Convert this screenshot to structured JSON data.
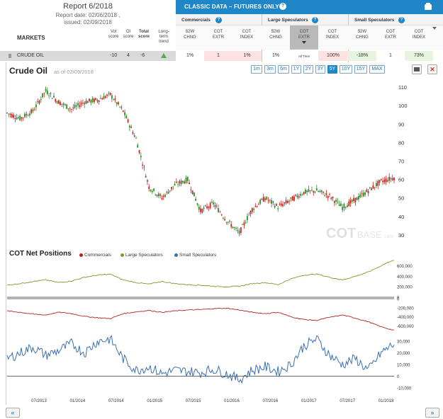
{
  "report": {
    "title": "Report 6/2018",
    "date": "Report date: 02/06/2018 ,",
    "issued": "issued: 02/09/2018",
    "markets_label": "MARKETS",
    "cols": [
      "Vol score",
      "OI score",
      "Total score",
      "Long-term trend"
    ]
  },
  "classic": {
    "title": "CLASSIC DATA – FUTURES ONLY",
    "groups": [
      "Commercials",
      "Large Speculators",
      "Small Speculators"
    ],
    "subcols": [
      [
        "52W",
        "CHNG"
      ],
      [
        "COT",
        "EXTR"
      ],
      [
        "COT",
        "INDEX"
      ],
      [
        "52W",
        "CHNG"
      ],
      [
        "COT",
        "EXTR"
      ],
      [
        "COT",
        "INDEX"
      ],
      [
        "52W",
        "CHNG"
      ],
      [
        "COT",
        "EXTR"
      ],
      [
        "COT",
        "INDEX"
      ]
    ]
  },
  "row": {
    "ticker": "CRUDE OIL",
    "vol": "-10",
    "oi": "4",
    "total": "-6",
    "cells": [
      "1%",
      "1",
      "1%",
      "1%",
      "All Time",
      "100%",
      "-18%",
      "1",
      "73%"
    ]
  },
  "price_chart": {
    "title": "Crude Oil",
    "asof": "as of 02/09/2018",
    "ranges": [
      "1m",
      "3m",
      "6m",
      "1Y",
      "2Y",
      "3Y",
      "5Y",
      "10Y",
      "15Y",
      "MAX"
    ],
    "active_range": "5Y",
    "watermark_cot": "COT",
    "watermark_base": "BASE",
    "watermark_com": ".com"
  },
  "cot_chart": {
    "title": "COT Net Positions",
    "legend": [
      "Commercials",
      "Large Speculators",
      "Small Speculators"
    ]
  },
  "colors": {
    "accent": "#1f86c7",
    "commercials": "#b22222",
    "large_spec": "#7a9a2e",
    "small_spec": "#3b6fb0",
    "candle_up": "#2e8b2e",
    "candle_down": "#cc2222"
  },
  "nav": {
    "prev": "«",
    "next": "»"
  },
  "chart_data": [
    {
      "type": "line",
      "title": "Crude Oil",
      "xlabel": "",
      "ylabel": "",
      "ylim": [
        25,
        115
      ],
      "yticks": [
        "110",
        "100",
        "90",
        "80",
        "70",
        "60",
        "50",
        "40",
        "30"
      ],
      "xticks": [
        "07/2013",
        "01/2014",
        "07/2014",
        "01/2015",
        "07/2015",
        "01/2016",
        "07/2016",
        "01/2017",
        "07/2017",
        "01/2018"
      ],
      "x": [
        "02/2013",
        "04/2013",
        "06/2013",
        "08/2013",
        "10/2013",
        "12/2013",
        "02/2014",
        "04/2014",
        "06/2014",
        "08/2014",
        "10/2014",
        "12/2014",
        "02/2015",
        "04/2015",
        "06/2015",
        "08/2015",
        "10/2015",
        "12/2015",
        "02/2016",
        "04/2016",
        "06/2016",
        "08/2016",
        "10/2016",
        "12/2016",
        "02/2017",
        "04/2017",
        "06/2017",
        "08/2017",
        "10/2017",
        "12/2017",
        "02/2018"
      ],
      "series": [
        {
          "values": [
            96,
            93,
            97,
            108,
            102,
            98,
            102,
            103,
            106,
            97,
            82,
            56,
            50,
            57,
            60,
            43,
            47,
            38,
            31,
            44,
            50,
            45,
            49,
            53,
            54,
            51,
            45,
            49,
            54,
            59,
            61
          ]
        }
      ]
    },
    {
      "type": "line",
      "title": "COT Net Positions",
      "series": [
        {
          "name": "Large Speculators",
          "yticks": [
            "600,000",
            "400,000",
            "200,000",
            "0"
          ],
          "ylim": [
            0,
            700000
          ],
          "values": [
            230000,
            260000,
            300000,
            330000,
            280000,
            310000,
            380000,
            420000,
            440000,
            330000,
            280000,
            250000,
            300000,
            260000,
            240000,
            230000,
            210000,
            200000,
            210000,
            260000,
            280000,
            240000,
            350000,
            420000,
            440000,
            380000,
            330000,
            400000,
            480000,
            600000,
            720000
          ]
        },
        {
          "name": "Commercials",
          "yticks": [
            "0",
            "-200,000",
            "-400,000",
            "-600,000"
          ],
          "ylim": [
            -750000,
            0
          ],
          "values": [
            -270000,
            -300000,
            -340000,
            -360000,
            -300000,
            -330000,
            -390000,
            -420000,
            -440000,
            -330000,
            -290000,
            -260000,
            -300000,
            -270000,
            -250000,
            -240000,
            -220000,
            -210000,
            -250000,
            -300000,
            -330000,
            -300000,
            -400000,
            -460000,
            -480000,
            -410000,
            -360000,
            -430000,
            -510000,
            -620000,
            -700000
          ]
        },
        {
          "name": "Small Speculators",
          "yticks": [
            "30,000",
            "20,000",
            "10,000",
            "0",
            "-10,000"
          ],
          "ylim": [
            -15000,
            35000
          ],
          "values": [
            15000,
            20000,
            25000,
            18000,
            22000,
            28000,
            20000,
            30000,
            32000,
            15000,
            5000,
            8000,
            2000,
            5000,
            4000,
            3000,
            6000,
            2000,
            -3000,
            5000,
            8000,
            4000,
            10000,
            26000,
            32000,
            18000,
            10000,
            15000,
            5000,
            20000,
            28000
          ]
        }
      ]
    }
  ]
}
